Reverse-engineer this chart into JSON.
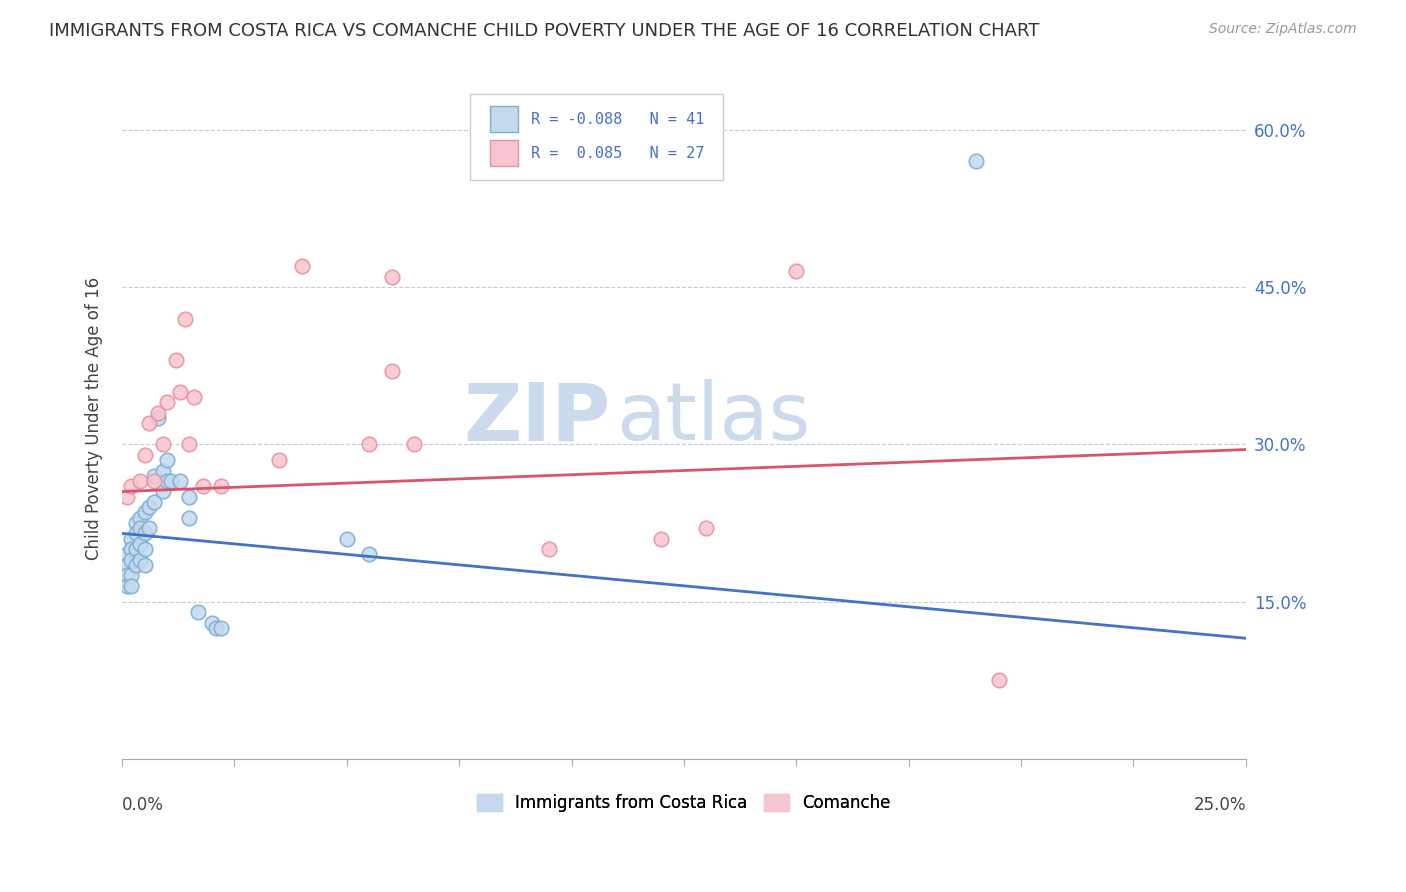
{
  "title": "IMMIGRANTS FROM COSTA RICA VS COMANCHE CHILD POVERTY UNDER THE AGE OF 16 CORRELATION CHART",
  "source": "Source: ZipAtlas.com",
  "ylabel": "Child Poverty Under the Age of 16",
  "xlim": [
    0.0,
    0.25
  ],
  "ylim": [
    0.0,
    0.65
  ],
  "blue_R": -0.088,
  "blue_N": 41,
  "pink_R": 0.085,
  "pink_N": 27,
  "blue_color_fill": "#c5d9ee",
  "blue_color_edge": "#7aadd4",
  "pink_color_fill": "#f7c5cf",
  "pink_color_edge": "#e8909f",
  "blue_line_color": "#4472c4",
  "pink_line_color": "#d9546a",
  "watermark_zip": "ZIP",
  "watermark_atlas": "atlas",
  "watermark_color": "#ccdaed",
  "blue_scatter_x": [
    0.001,
    0.001,
    0.001,
    0.001,
    0.002,
    0.002,
    0.002,
    0.002,
    0.002,
    0.003,
    0.003,
    0.003,
    0.003,
    0.004,
    0.004,
    0.004,
    0.004,
    0.005,
    0.005,
    0.005,
    0.005,
    0.006,
    0.006,
    0.007,
    0.007,
    0.008,
    0.009,
    0.009,
    0.01,
    0.01,
    0.011,
    0.013,
    0.015,
    0.015,
    0.017,
    0.02,
    0.021,
    0.022,
    0.05,
    0.055,
    0.19
  ],
  "blue_scatter_y": [
    0.195,
    0.185,
    0.175,
    0.165,
    0.21,
    0.2,
    0.19,
    0.175,
    0.165,
    0.225,
    0.215,
    0.2,
    0.185,
    0.23,
    0.22,
    0.205,
    0.19,
    0.235,
    0.215,
    0.2,
    0.185,
    0.24,
    0.22,
    0.27,
    0.245,
    0.325,
    0.275,
    0.255,
    0.285,
    0.265,
    0.265,
    0.265,
    0.25,
    0.23,
    0.14,
    0.13,
    0.125,
    0.125,
    0.21,
    0.195,
    0.57
  ],
  "pink_scatter_x": [
    0.001,
    0.002,
    0.004,
    0.005,
    0.006,
    0.007,
    0.008,
    0.009,
    0.01,
    0.012,
    0.013,
    0.014,
    0.015,
    0.016,
    0.018,
    0.022,
    0.035,
    0.04,
    0.055,
    0.06,
    0.06,
    0.065,
    0.095,
    0.12,
    0.13,
    0.15,
    0.195
  ],
  "pink_scatter_y": [
    0.25,
    0.26,
    0.265,
    0.29,
    0.32,
    0.265,
    0.33,
    0.3,
    0.34,
    0.38,
    0.35,
    0.42,
    0.3,
    0.345,
    0.26,
    0.26,
    0.285,
    0.47,
    0.3,
    0.37,
    0.46,
    0.3,
    0.2,
    0.21,
    0.22,
    0.465,
    0.075
  ],
  "blue_line_x0": 0.0,
  "blue_line_y0": 0.215,
  "blue_line_x1": 0.25,
  "blue_line_y1": 0.115,
  "pink_line_x0": 0.0,
  "pink_line_y0": 0.255,
  "pink_line_x1": 0.25,
  "pink_line_y1": 0.295
}
